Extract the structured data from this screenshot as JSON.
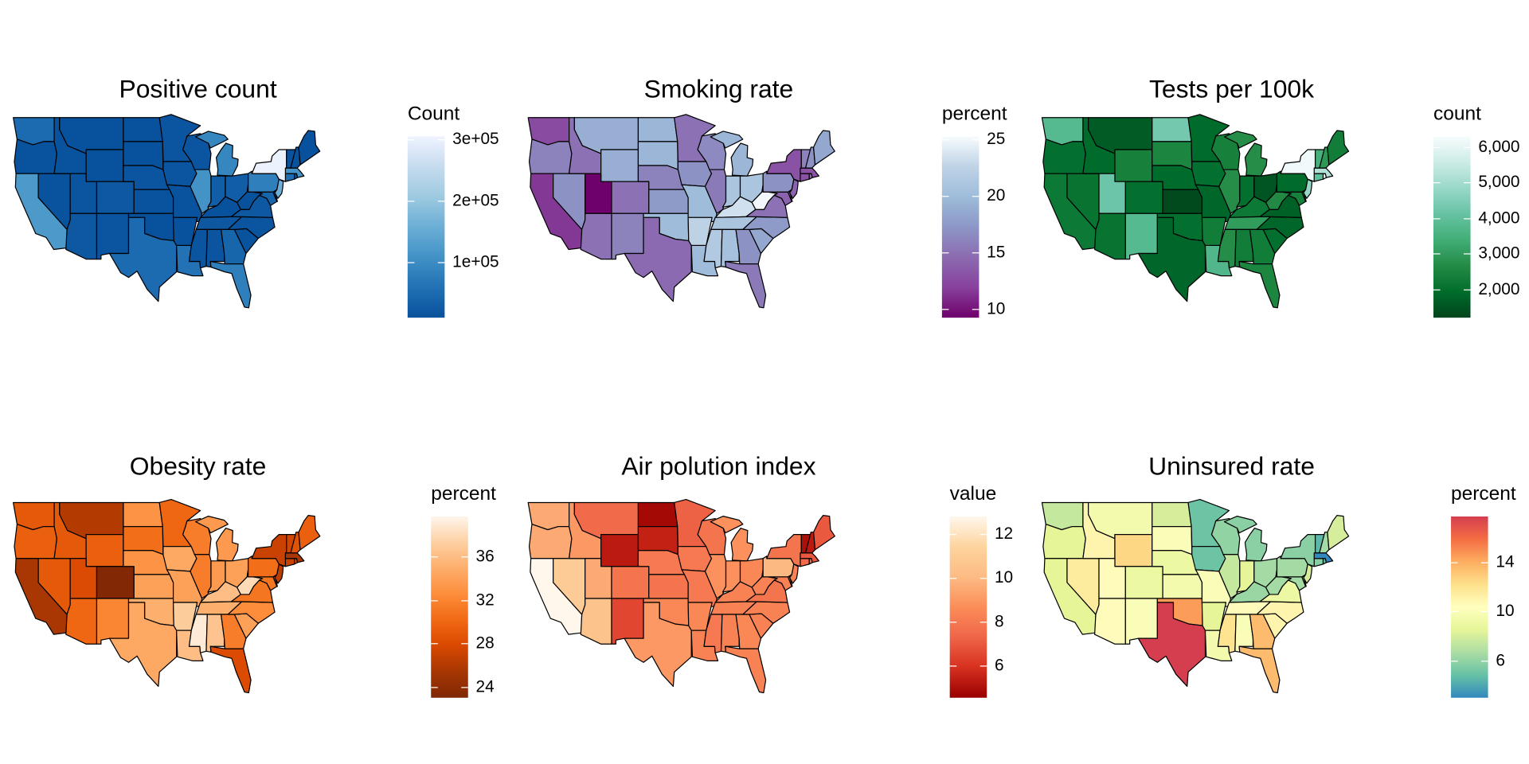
{
  "states": [
    "WA",
    "OR",
    "CA",
    "NV",
    "ID",
    "MT",
    "WY",
    "UT",
    "CO",
    "AZ",
    "NM",
    "ND",
    "SD",
    "NE",
    "KS",
    "OK",
    "TX",
    "MN",
    "IA",
    "MO",
    "AR",
    "LA",
    "WI",
    "IL",
    "MI",
    "IN",
    "OH",
    "KY",
    "TN",
    "MS",
    "AL",
    "GA",
    "FL",
    "SC",
    "NC",
    "VA",
    "WV",
    "MD",
    "DE",
    "PA",
    "NY",
    "NJ",
    "CT",
    "RI",
    "MA",
    "VT",
    "NH",
    "ME"
  ],
  "maps": [
    {
      "title": "Positive count",
      "legend_title": "Count",
      "range": [
        10000,
        305000
      ],
      "ticks": [
        {
          "label": "1e+05",
          "value": 100000
        },
        {
          "label": "2e+05",
          "value": 200000
        },
        {
          "label": "3e+05",
          "value": 300000
        }
      ],
      "colors": [
        "#08519c",
        "#2171b5",
        "#4292c6",
        "#6baed6",
        "#9ecae1",
        "#c6dbef",
        "#eff3ff"
      ],
      "values": [
        50000,
        12000,
        120000,
        12000,
        12000,
        10000,
        10000,
        15000,
        20000,
        20000,
        15000,
        10000,
        10000,
        15000,
        12000,
        10000,
        50000,
        15000,
        15000,
        12000,
        10000,
        60000,
        15000,
        110000,
        90000,
        30000,
        30000,
        10000,
        20000,
        15000,
        15000,
        40000,
        80000,
        12000,
        15000,
        20000,
        10000,
        40000,
        10000,
        80000,
        300000,
        160000,
        55000,
        15000,
        110000,
        10000,
        10000,
        10000
      ]
    },
    {
      "title": "Smoking rate",
      "legend_title": "percent",
      "range": [
        9.2,
        25.3
      ],
      "ticks": [
        {
          "label": "10",
          "value": 10
        },
        {
          "label": "15",
          "value": 15
        },
        {
          "label": "20",
          "value": 20
        },
        {
          "label": "25",
          "value": 25
        }
      ],
      "colors": [
        "#6e016b",
        "#88419d",
        "#8c6bb1",
        "#8c96c6",
        "#9ebcda",
        "#bfd3e6",
        "#f7fcfd"
      ],
      "values": [
        12.5,
        16,
        11.5,
        17,
        15,
        19,
        19,
        9,
        15,
        15,
        16,
        19.5,
        19.5,
        16,
        17.5,
        20,
        14.5,
        15,
        17,
        20,
        22.5,
        20,
        16.5,
        15.5,
        19.5,
        21,
        21,
        23.5,
        21,
        21.5,
        20.5,
        17,
        15.5,
        18.5,
        17.5,
        15,
        25,
        14,
        17,
        17,
        13,
        14,
        13,
        14.5,
        13,
        16,
        17,
        18.5
      ]
    },
    {
      "title": "Tests per 100k",
      "legend_title": "count",
      "range": [
        1190,
        6300
      ],
      "ticks": [
        {
          "label": "2,000",
          "value": 2000
        },
        {
          "label": "3,000",
          "value": 3000
        },
        {
          "label": "4,000",
          "value": 4000
        },
        {
          "label": "5,000",
          "value": 5000
        },
        {
          "label": "6,000",
          "value": 6000
        }
      ],
      "colors": [
        "#00441b",
        "#006d2c",
        "#238b45",
        "#41ae76",
        "#66c2a4",
        "#99d8c9",
        "#ccece6",
        "#f7fcfd"
      ],
      "values": [
        3800,
        2000,
        2200,
        2100,
        1900,
        1600,
        2400,
        4200,
        2000,
        2100,
        3800,
        4300,
        2500,
        1900,
        1300,
        2000,
        1800,
        1900,
        2000,
        1800,
        2300,
        3700,
        2400,
        2700,
        2700,
        2000,
        1500,
        2200,
        3000,
        2700,
        2300,
        2300,
        2500,
        2000,
        1800,
        1700,
        2600,
        2400,
        2800,
        1900,
        6200,
        4800,
        4000,
        6300,
        5200,
        3500,
        2900,
        2300
      ]
    },
    {
      "title": "Obesity rate",
      "legend_title": "percent",
      "range": [
        23,
        39.7
      ],
      "ticks": [
        {
          "label": "24",
          "value": 24
        },
        {
          "label": "28",
          "value": 28
        },
        {
          "label": "32",
          "value": 32
        },
        {
          "label": "36",
          "value": 36
        }
      ],
      "colors": [
        "#7f2704",
        "#a63603",
        "#d94801",
        "#f16913",
        "#fd8d3c",
        "#fdae6b",
        "#fdd0a2",
        "#fff5eb"
      ],
      "values": [
        29,
        29.5,
        25.5,
        29,
        29,
        26,
        29.5,
        28,
        23.2,
        30,
        32,
        33,
        30.5,
        33,
        34,
        35,
        34.5,
        30,
        34.5,
        34,
        37,
        36,
        31.5,
        31.5,
        33.5,
        33.5,
        34,
        36,
        35,
        39,
        36.5,
        31.5,
        28,
        34,
        32.5,
        31,
        38,
        31,
        31,
        30.5,
        27,
        26.5,
        27,
        27.5,
        25.5,
        27.5,
        28.5,
        29.5
      ]
    },
    {
      "title": "Air polution index",
      "legend_title": "value",
      "range": [
        4.55,
        12.8
      ],
      "ticks": [
        {
          "label": "6",
          "value": 6
        },
        {
          "label": "8",
          "value": 8
        },
        {
          "label": "10",
          "value": 10
        },
        {
          "label": "12",
          "value": 12
        }
      ],
      "colors": [
        "#990000",
        "#d7301f",
        "#ef6548",
        "#fc8d59",
        "#fdbb84",
        "#fdd49e",
        "#fff7ec"
      ],
      "values": [
        9.5,
        9.5,
        12.8,
        11,
        9,
        7.5,
        5.3,
        9.5,
        7.8,
        10.5,
        6.5,
        4.8,
        5.5,
        8,
        7.8,
        8.5,
        9,
        7.2,
        8,
        8,
        8.5,
        8.3,
        7.8,
        8.8,
        8.8,
        8.8,
        8.5,
        8.3,
        8.3,
        8,
        8.3,
        8.5,
        8.3,
        8.3,
        8.3,
        7.8,
        8.3,
        8.3,
        8.3,
        10,
        7.8,
        8.3,
        7.5,
        7.5,
        7,
        5,
        5.3,
        7
      ]
    },
    {
      "title": "Uninsured rate",
      "legend_title": "percent",
      "range": [
        3,
        17.7
      ],
      "ticks": [
        {
          "label": "6",
          "value": 6
        },
        {
          "label": "10",
          "value": 10
        },
        {
          "label": "14",
          "value": 14
        }
      ],
      "colors": [
        "#3288bd",
        "#66c2a5",
        "#abdda4",
        "#e6f598",
        "#ffffbf",
        "#fee08b",
        "#fdae61",
        "#f46d43",
        "#d53e4f"
      ],
      "values": [
        7.5,
        8.5,
        8.5,
        11.5,
        11,
        9.5,
        12.5,
        10.5,
        9,
        10.5,
        10,
        8,
        10,
        9,
        9.5,
        14.5,
        17.7,
        5,
        5,
        10,
        8.5,
        9.5,
        6,
        7.5,
        5.8,
        8.5,
        6.5,
        6.2,
        10.5,
        12,
        10,
        13.5,
        13.5,
        11,
        11,
        9,
        6.5,
        6.5,
        6,
        6.5,
        5.8,
        8,
        5.7,
        4.5,
        3,
        4.5,
        6.5,
        8
      ]
    }
  ]
}
